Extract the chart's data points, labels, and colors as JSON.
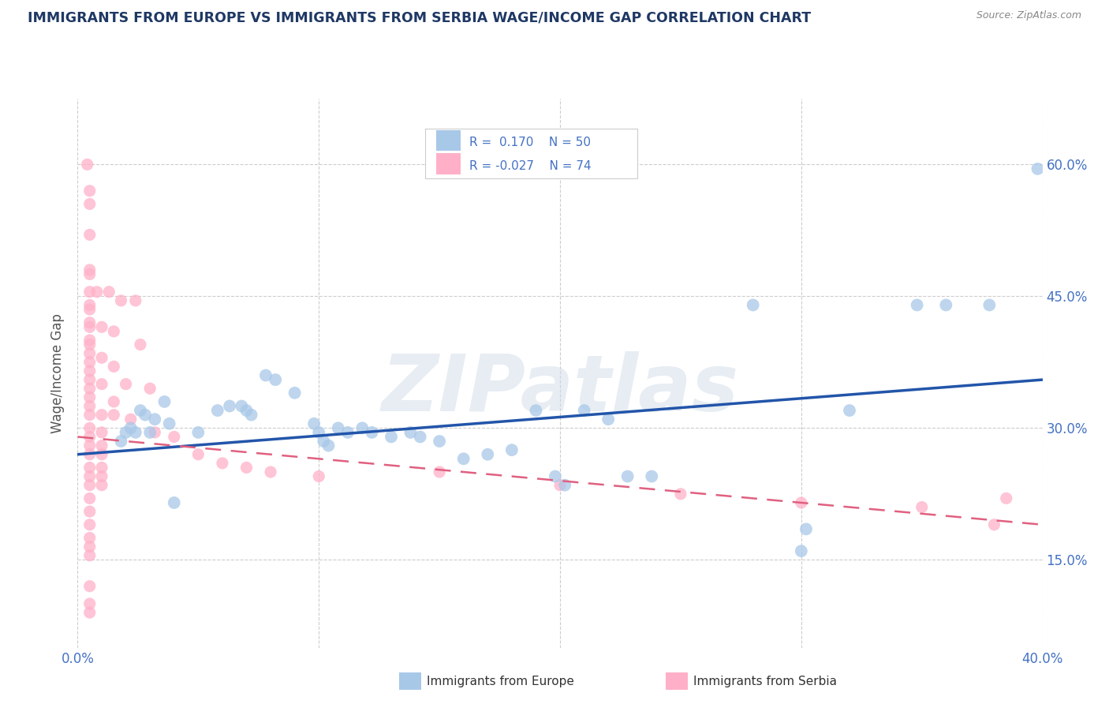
{
  "title": "IMMIGRANTS FROM EUROPE VS IMMIGRANTS FROM SERBIA WAGE/INCOME GAP CORRELATION CHART",
  "source": "Source: ZipAtlas.com",
  "ylabel": "Wage/Income Gap",
  "xlim": [
    0.0,
    0.4
  ],
  "ylim": [
    0.05,
    0.675
  ],
  "yticks": [
    0.15,
    0.3,
    0.45,
    0.6
  ],
  "ytick_labels": [
    "15.0%",
    "30.0%",
    "45.0%",
    "60.0%"
  ],
  "xticks": [
    0.0,
    0.1,
    0.2,
    0.3,
    0.4
  ],
  "xtick_labels": [
    "0.0%",
    "",
    "",
    "",
    "40.0%"
  ],
  "background_color": "#ffffff",
  "grid_color": "#c8c8c8",
  "watermark": "ZIPatlas",
  "blue_color": "#a8c8e8",
  "pink_color": "#ffb0c8",
  "blue_line_color": "#2255aa",
  "pink_line_color": "#e06080",
  "axis_label_color": "#4472c4",
  "title_color": "#1f3864",
  "europe_points": [
    [
      0.018,
      0.285
    ],
    [
      0.02,
      0.295
    ],
    [
      0.022,
      0.3
    ],
    [
      0.024,
      0.295
    ],
    [
      0.026,
      0.32
    ],
    [
      0.028,
      0.315
    ],
    [
      0.03,
      0.295
    ],
    [
      0.032,
      0.31
    ],
    [
      0.036,
      0.33
    ],
    [
      0.038,
      0.305
    ],
    [
      0.04,
      0.215
    ],
    [
      0.05,
      0.295
    ],
    [
      0.058,
      0.32
    ],
    [
      0.063,
      0.325
    ],
    [
      0.068,
      0.325
    ],
    [
      0.07,
      0.32
    ],
    [
      0.072,
      0.315
    ],
    [
      0.078,
      0.36
    ],
    [
      0.082,
      0.355
    ],
    [
      0.09,
      0.34
    ],
    [
      0.098,
      0.305
    ],
    [
      0.1,
      0.295
    ],
    [
      0.102,
      0.285
    ],
    [
      0.104,
      0.28
    ],
    [
      0.108,
      0.3
    ],
    [
      0.112,
      0.295
    ],
    [
      0.118,
      0.3
    ],
    [
      0.122,
      0.295
    ],
    [
      0.13,
      0.29
    ],
    [
      0.138,
      0.295
    ],
    [
      0.142,
      0.29
    ],
    [
      0.15,
      0.285
    ],
    [
      0.16,
      0.265
    ],
    [
      0.17,
      0.27
    ],
    [
      0.18,
      0.275
    ],
    [
      0.19,
      0.32
    ],
    [
      0.198,
      0.245
    ],
    [
      0.202,
      0.235
    ],
    [
      0.21,
      0.32
    ],
    [
      0.22,
      0.31
    ],
    [
      0.228,
      0.245
    ],
    [
      0.238,
      0.245
    ],
    [
      0.28,
      0.44
    ],
    [
      0.3,
      0.16
    ],
    [
      0.32,
      0.32
    ],
    [
      0.348,
      0.44
    ],
    [
      0.36,
      0.44
    ],
    [
      0.378,
      0.44
    ],
    [
      0.398,
      0.595
    ],
    [
      0.302,
      0.185
    ]
  ],
  "serbia_points": [
    [
      0.004,
      0.6
    ],
    [
      0.005,
      0.57
    ],
    [
      0.005,
      0.555
    ],
    [
      0.005,
      0.52
    ],
    [
      0.005,
      0.48
    ],
    [
      0.005,
      0.475
    ],
    [
      0.005,
      0.455
    ],
    [
      0.005,
      0.44
    ],
    [
      0.005,
      0.435
    ],
    [
      0.005,
      0.42
    ],
    [
      0.005,
      0.415
    ],
    [
      0.005,
      0.4
    ],
    [
      0.005,
      0.395
    ],
    [
      0.005,
      0.385
    ],
    [
      0.005,
      0.375
    ],
    [
      0.005,
      0.365
    ],
    [
      0.005,
      0.355
    ],
    [
      0.005,
      0.345
    ],
    [
      0.005,
      0.335
    ],
    [
      0.005,
      0.325
    ],
    [
      0.005,
      0.315
    ],
    [
      0.005,
      0.3
    ],
    [
      0.005,
      0.29
    ],
    [
      0.005,
      0.28
    ],
    [
      0.005,
      0.27
    ],
    [
      0.005,
      0.255
    ],
    [
      0.005,
      0.245
    ],
    [
      0.005,
      0.235
    ],
    [
      0.005,
      0.22
    ],
    [
      0.005,
      0.205
    ],
    [
      0.005,
      0.19
    ],
    [
      0.005,
      0.175
    ],
    [
      0.005,
      0.165
    ],
    [
      0.005,
      0.155
    ],
    [
      0.005,
      0.12
    ],
    [
      0.005,
      0.1
    ],
    [
      0.005,
      0.09
    ],
    [
      0.008,
      0.455
    ],
    [
      0.01,
      0.415
    ],
    [
      0.01,
      0.38
    ],
    [
      0.01,
      0.35
    ],
    [
      0.01,
      0.315
    ],
    [
      0.01,
      0.295
    ],
    [
      0.01,
      0.28
    ],
    [
      0.01,
      0.27
    ],
    [
      0.01,
      0.255
    ],
    [
      0.01,
      0.245
    ],
    [
      0.01,
      0.235
    ],
    [
      0.013,
      0.455
    ],
    [
      0.015,
      0.41
    ],
    [
      0.015,
      0.37
    ],
    [
      0.015,
      0.33
    ],
    [
      0.015,
      0.315
    ],
    [
      0.018,
      0.445
    ],
    [
      0.02,
      0.35
    ],
    [
      0.022,
      0.31
    ],
    [
      0.024,
      0.445
    ],
    [
      0.026,
      0.395
    ],
    [
      0.03,
      0.345
    ],
    [
      0.032,
      0.295
    ],
    [
      0.04,
      0.29
    ],
    [
      0.05,
      0.27
    ],
    [
      0.06,
      0.26
    ],
    [
      0.07,
      0.255
    ],
    [
      0.08,
      0.25
    ],
    [
      0.1,
      0.245
    ],
    [
      0.15,
      0.25
    ],
    [
      0.2,
      0.235
    ],
    [
      0.25,
      0.225
    ],
    [
      0.3,
      0.215
    ],
    [
      0.35,
      0.21
    ],
    [
      0.385,
      0.22
    ],
    [
      0.38,
      0.19
    ]
  ],
  "blue_line_x": [
    0.0,
    0.4
  ],
  "blue_line_y": [
    0.27,
    0.355
  ],
  "pink_line_x": [
    0.0,
    0.4
  ],
  "pink_line_y": [
    0.29,
    0.19
  ]
}
